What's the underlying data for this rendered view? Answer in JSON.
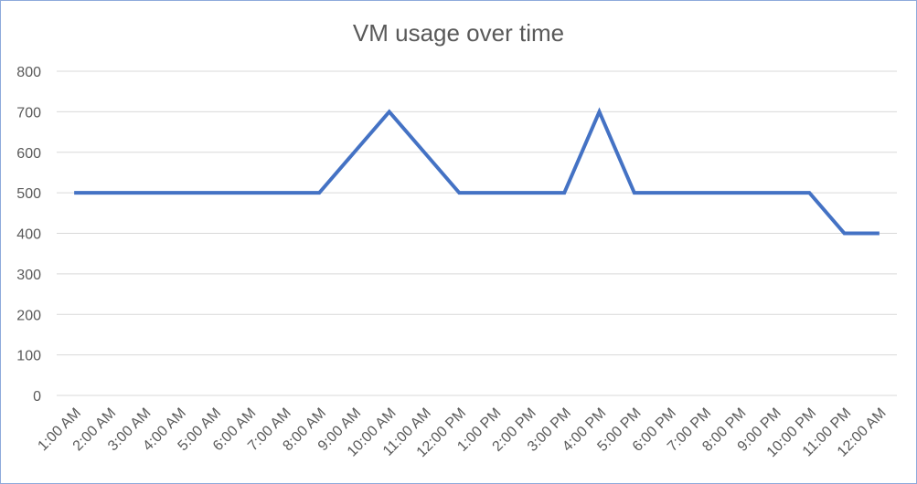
{
  "chart_data": {
    "type": "line",
    "title": "VM usage over time",
    "xlabel": "",
    "ylabel": "",
    "categories": [
      "1:00 AM",
      "2:00 AM",
      "3:00 AM",
      "4:00 AM",
      "5:00 AM",
      "6:00 AM",
      "7:00 AM",
      "8:00 AM",
      "9:00 AM",
      "10:00 AM",
      "11:00 AM",
      "12:00 PM",
      "1:00 PM",
      "2:00 PM",
      "3:00 PM",
      "4:00 PM",
      "5:00 PM",
      "6:00 PM",
      "7:00 PM",
      "8:00 PM",
      "9:00 PM",
      "10:00 PM",
      "11:00 PM",
      "12:00 AM"
    ],
    "series": [
      {
        "values": [
          500,
          500,
          500,
          500,
          500,
          500,
          500,
          500,
          600,
          700,
          600,
          500,
          500,
          500,
          500,
          700,
          500,
          500,
          500,
          500,
          500,
          500,
          400,
          400
        ],
        "color": "#4472c4"
      }
    ],
    "ylim": [
      0,
      800
    ],
    "yticks": [
      0,
      100,
      200,
      300,
      400,
      500,
      600,
      700,
      800
    ],
    "grid": true,
    "legend": "none"
  }
}
